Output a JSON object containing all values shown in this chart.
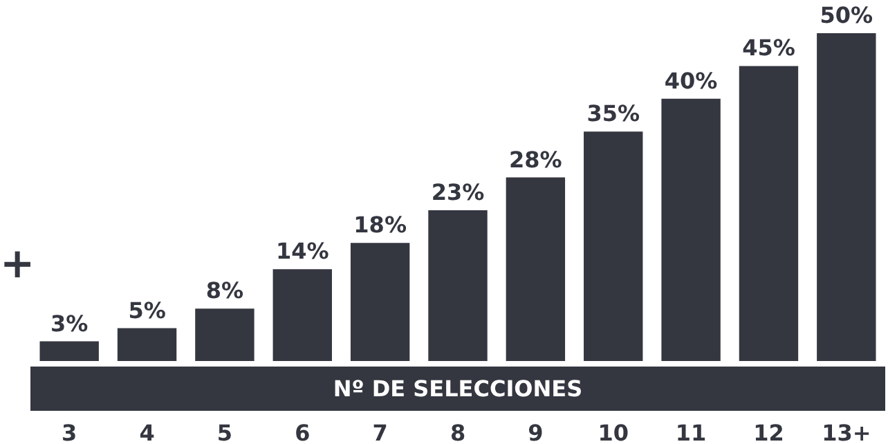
{
  "chart_data": {
    "type": "bar",
    "xlabel": "Nº DE SELECCIONES",
    "categories": [
      "3",
      "4",
      "5",
      "6",
      "7",
      "8",
      "9",
      "10",
      "11",
      "12",
      "13+"
    ],
    "values": [
      3,
      5,
      8,
      14,
      18,
      23,
      28,
      35,
      40,
      45,
      50
    ],
    "value_labels": [
      "3%",
      "5%",
      "8%",
      "14%",
      "18%",
      "23%",
      "28%",
      "35%",
      "40%",
      "45%",
      "50%"
    ],
    "color": "#343640",
    "annotations": [
      "+"
    ]
  }
}
